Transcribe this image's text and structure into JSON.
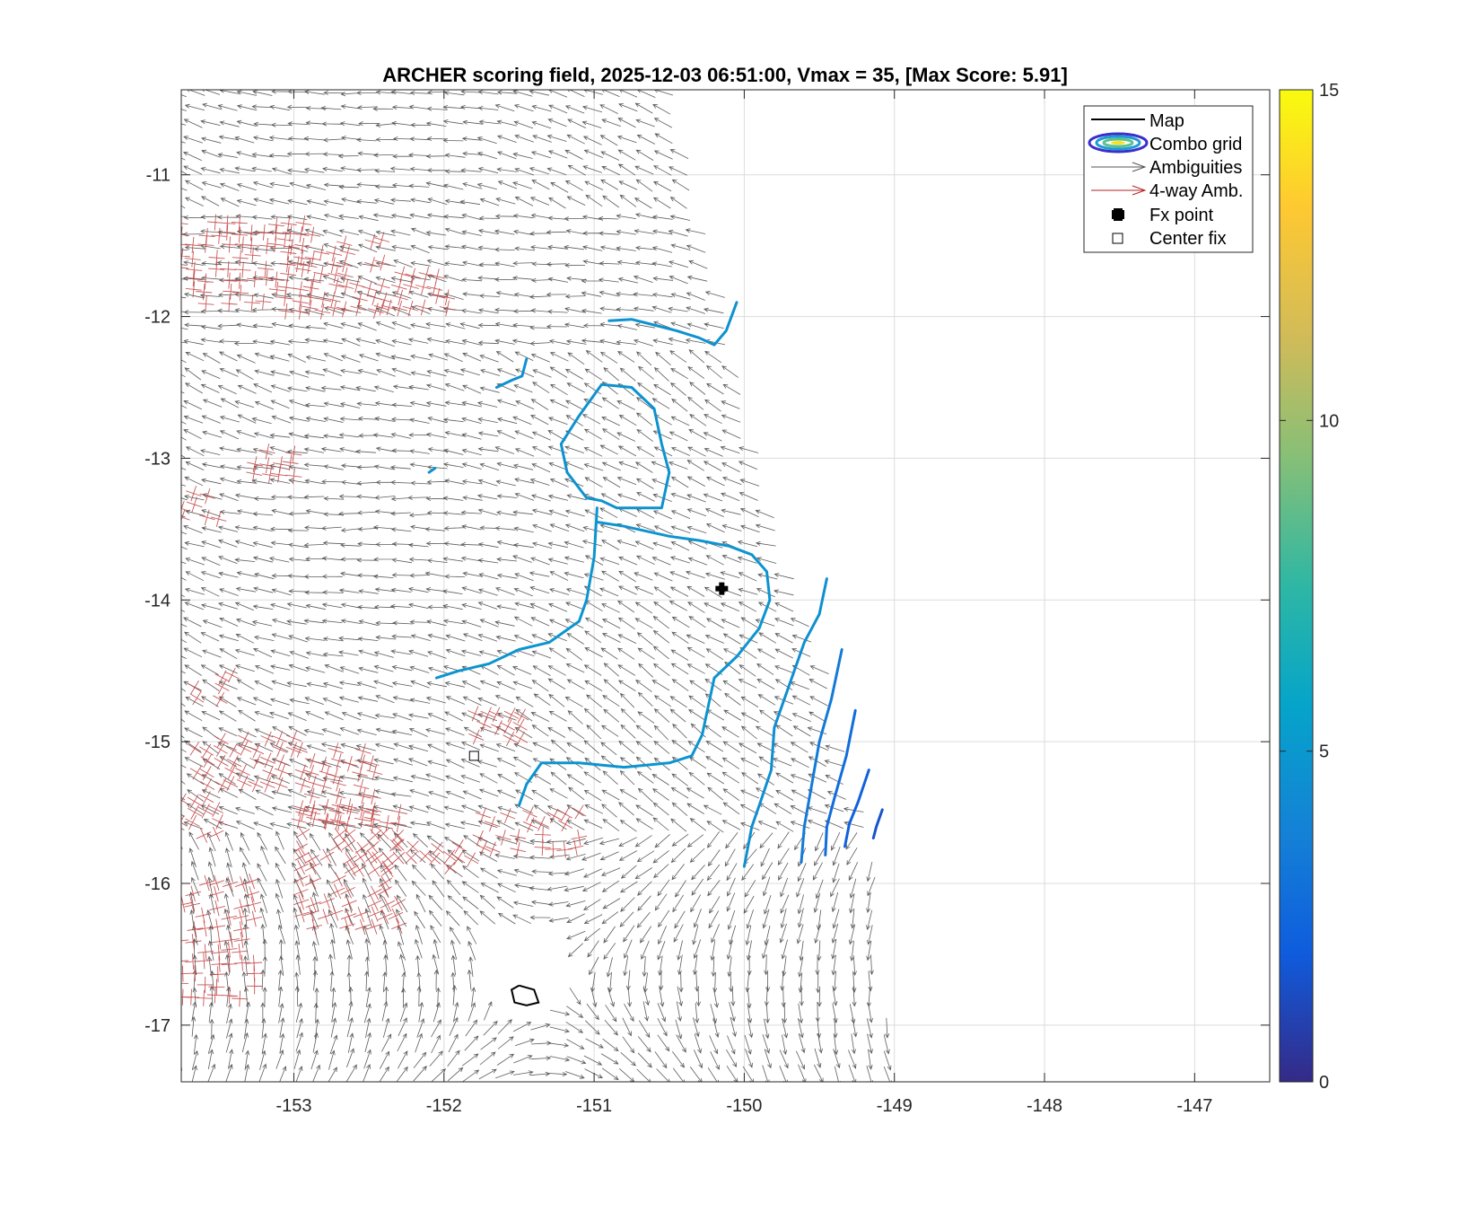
{
  "chart_data": {
    "type": "contour",
    "title": "ARCHER scoring field, 2025-12-03 06:51:00, Vmax = 35, [Max Score: 5.91]",
    "xlabel": "",
    "ylabel": "",
    "xlim": [
      -153.75,
      -146.5
    ],
    "ylim": [
      -17.4,
      -10.4
    ],
    "x_ticks": [
      -153,
      -152,
      -151,
      -150,
      -149,
      -148,
      -147
    ],
    "y_ticks": [
      -11,
      -12,
      -13,
      -14,
      -15,
      -16,
      -17
    ],
    "grid": true,
    "legend_position": "top-right",
    "legend": [
      {
        "label": "Map",
        "symbol": "line",
        "color": "#000000"
      },
      {
        "label": "Combo grid",
        "symbol": "contour",
        "color": "#3a2fc8"
      },
      {
        "label": "Ambiguities",
        "symbol": "arrow",
        "color": "#555555"
      },
      {
        "label": "4-way Amb.",
        "symbol": "arrow",
        "color": "#b22222"
      },
      {
        "label": "Fx point",
        "symbol": "plus",
        "color": "#000000"
      },
      {
        "label": "Center fix",
        "symbol": "square",
        "color": "#000000"
      }
    ],
    "colorbar": {
      "range": [
        0,
        15
      ],
      "ticks": [
        0,
        5,
        10,
        15
      ],
      "colormap": "parula"
    },
    "fx_point": {
      "x": -150.15,
      "y": -13.92
    },
    "center_fix": {
      "x": -151.8,
      "y": -15.1
    },
    "map_outline": [
      [
        -151.5,
        -16.72
      ],
      [
        -151.4,
        -16.75
      ],
      [
        -151.37,
        -16.84
      ],
      [
        -151.45,
        -16.86
      ],
      [
        -151.53,
        -16.84
      ],
      [
        -151.55,
        -16.75
      ],
      [
        -151.5,
        -16.72
      ]
    ],
    "contours": [
      {
        "level": 4.7,
        "points": [
          [
            -150.9,
            -12.03
          ],
          [
            -150.75,
            -12.02
          ],
          [
            -150.6,
            -12.06
          ],
          [
            -150.45,
            -12.1
          ],
          [
            -150.3,
            -12.15
          ],
          [
            -150.2,
            -12.2
          ],
          [
            -150.12,
            -12.1
          ],
          [
            -150.05,
            -11.9
          ]
        ]
      },
      {
        "level": 4.6,
        "points": [
          [
            -151.65,
            -12.5
          ],
          [
            -151.55,
            -12.45
          ],
          [
            -151.48,
            -12.42
          ],
          [
            -151.45,
            -12.3
          ]
        ]
      },
      {
        "level": 4.7,
        "points": [
          [
            -150.85,
            -13.35
          ],
          [
            -150.95,
            -13.3
          ],
          [
            -151.05,
            -13.28
          ],
          [
            -151.18,
            -13.1
          ],
          [
            -151.22,
            -12.9
          ],
          [
            -151.1,
            -12.7
          ],
          [
            -150.95,
            -12.48
          ],
          [
            -150.75,
            -12.5
          ],
          [
            -150.6,
            -12.65
          ],
          [
            -150.55,
            -12.9
          ],
          [
            -150.5,
            -13.1
          ],
          [
            -150.55,
            -13.35
          ],
          [
            -150.7,
            -13.35
          ],
          [
            -150.85,
            -13.35
          ]
        ]
      },
      {
        "level": 4.6,
        "points": [
          [
            -152.1,
            -13.1
          ],
          [
            -152.06,
            -13.07
          ]
        ]
      },
      {
        "level": 4.8,
        "points": [
          [
            -150.98,
            -13.35
          ],
          [
            -151.0,
            -13.7
          ],
          [
            -151.05,
            -14.0
          ],
          [
            -151.1,
            -14.15
          ],
          [
            -151.3,
            -14.3
          ],
          [
            -151.5,
            -14.35
          ],
          [
            -151.7,
            -14.45
          ],
          [
            -151.9,
            -14.5
          ],
          [
            -152.05,
            -14.55
          ]
        ]
      },
      {
        "level": 4.8,
        "points": [
          [
            -150.98,
            -13.45
          ],
          [
            -150.8,
            -13.48
          ],
          [
            -150.5,
            -13.55
          ],
          [
            -150.3,
            -13.58
          ],
          [
            -150.1,
            -13.62
          ],
          [
            -149.95,
            -13.68
          ],
          [
            -149.85,
            -13.8
          ],
          [
            -149.83,
            -14.0
          ],
          [
            -149.9,
            -14.2
          ],
          [
            -150.05,
            -14.4
          ],
          [
            -150.2,
            -14.55
          ],
          [
            -150.25,
            -14.8
          ],
          [
            -150.28,
            -14.95
          ],
          [
            -150.35,
            -15.1
          ],
          [
            -150.5,
            -15.15
          ],
          [
            -150.8,
            -15.18
          ],
          [
            -151.1,
            -15.15
          ],
          [
            -151.35,
            -15.15
          ],
          [
            -151.45,
            -15.3
          ],
          [
            -151.5,
            -15.45
          ]
        ]
      },
      {
        "level": 4.5,
        "points": [
          [
            -149.45,
            -13.85
          ],
          [
            -149.5,
            -14.1
          ],
          [
            -149.6,
            -14.3
          ],
          [
            -149.7,
            -14.6
          ],
          [
            -149.8,
            -14.9
          ],
          [
            -149.82,
            -15.2
          ],
          [
            -149.9,
            -15.45
          ],
          [
            -149.95,
            -15.6
          ],
          [
            -150.0,
            -15.88
          ]
        ]
      },
      {
        "level": 3.4,
        "points": [
          [
            -149.35,
            -14.35
          ],
          [
            -149.42,
            -14.7
          ],
          [
            -149.5,
            -15.0
          ],
          [
            -149.55,
            -15.3
          ],
          [
            -149.6,
            -15.6
          ],
          [
            -149.62,
            -15.85
          ]
        ]
      },
      {
        "level": 2.8,
        "points": [
          [
            -149.26,
            -14.78
          ],
          [
            -149.32,
            -15.1
          ],
          [
            -149.4,
            -15.4
          ],
          [
            -149.45,
            -15.6
          ],
          [
            -149.46,
            -15.8
          ]
        ]
      },
      {
        "level": 2.2,
        "points": [
          [
            -149.17,
            -15.2
          ],
          [
            -149.24,
            -15.42
          ],
          [
            -149.3,
            -15.58
          ],
          [
            -149.33,
            -15.74
          ]
        ]
      },
      {
        "level": 1.6,
        "points": [
          [
            -149.08,
            -15.48
          ],
          [
            -149.12,
            -15.6
          ],
          [
            -149.14,
            -15.68
          ]
        ]
      }
    ]
  }
}
